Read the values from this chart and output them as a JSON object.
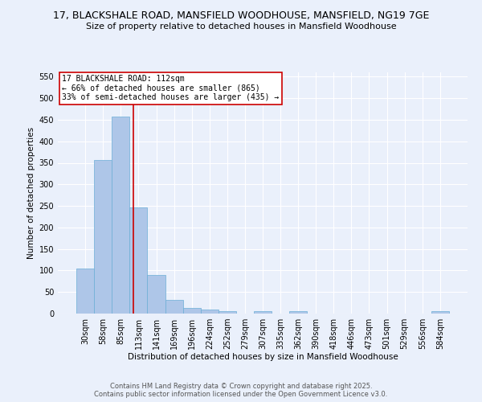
{
  "title": "17, BLACKSHALE ROAD, MANSFIELD WOODHOUSE, MANSFIELD, NG19 7GE",
  "subtitle": "Size of property relative to detached houses in Mansfield Woodhouse",
  "xlabel": "Distribution of detached houses by size in Mansfield Woodhouse",
  "ylabel": "Number of detached properties",
  "footer_line1": "Contains HM Land Registry data © Crown copyright and database right 2025.",
  "footer_line2": "Contains public sector information licensed under the Open Government Licence v3.0.",
  "bin_labels": [
    "30sqm",
    "58sqm",
    "85sqm",
    "113sqm",
    "141sqm",
    "169sqm",
    "196sqm",
    "224sqm",
    "252sqm",
    "279sqm",
    "307sqm",
    "335sqm",
    "362sqm",
    "390sqm",
    "418sqm",
    "446sqm",
    "473sqm",
    "501sqm",
    "529sqm",
    "556sqm",
    "584sqm"
  ],
  "bar_heights": [
    105,
    357,
    457,
    247,
    90,
    32,
    13,
    9,
    6,
    0,
    5,
    0,
    5,
    0,
    0,
    0,
    0,
    0,
    0,
    0,
    5
  ],
  "bar_color": "#aec6e8",
  "bar_edge_color": "#6baed6",
  "red_line_x": 2.72,
  "annotation_text_lines": [
    "17 BLACKSHALE ROAD: 112sqm",
    "← 66% of detached houses are smaller (865)",
    "33% of semi-detached houses are larger (435) →"
  ],
  "annotation_box_color": "#ffffff",
  "annotation_box_edge_color": "#cc0000",
  "ylim": [
    0,
    560
  ],
  "yticks": [
    0,
    50,
    100,
    150,
    200,
    250,
    300,
    350,
    400,
    450,
    500,
    550
  ],
  "bg_color": "#eaf0fb",
  "grid_color": "#ffffff",
  "title_fontsize": 9,
  "subtitle_fontsize": 8,
  "axis_label_fontsize": 7.5,
  "tick_fontsize": 7,
  "footer_fontsize": 6,
  "annotation_fontsize": 7
}
